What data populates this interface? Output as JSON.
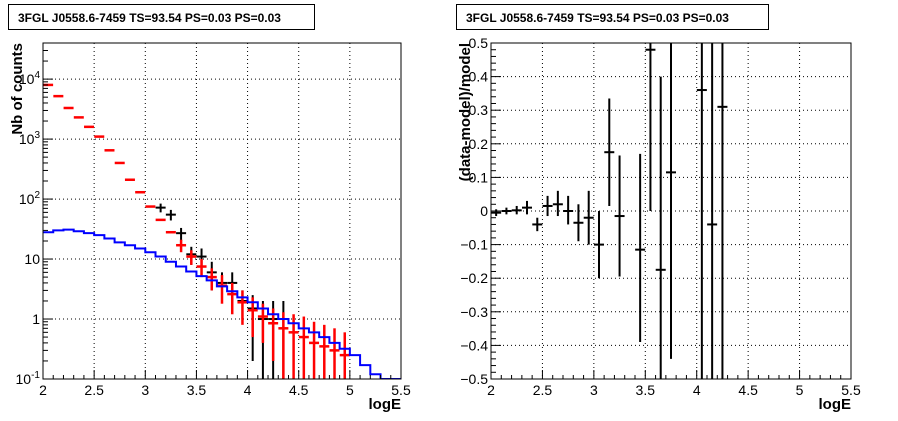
{
  "chart_data": [
    {
      "type": "line",
      "title": "3FGL J0558.6-7459 TS=93.54 PS=0.03 PS=0.03",
      "xlabel": "logE",
      "ylabel": "Nb of counts",
      "xlim": [
        2,
        5.5
      ],
      "ylim": [
        0.1,
        40000
      ],
      "ylog": true,
      "grid": true,
      "x_ticks": [
        "2",
        "2.5",
        "3",
        "3.5",
        "4",
        "4.5",
        "5",
        "5.5"
      ],
      "y_ticks": [
        "10^{-1}",
        "1",
        "10",
        "10^{2}",
        "10^{3}",
        "10^{4}"
      ],
      "series": [
        {
          "kind": "data_black",
          "color": "#000000",
          "x": [
            3.15,
            3.25,
            3.35,
            3.45,
            3.55,
            3.65,
            3.75,
            3.85,
            3.95,
            4.05,
            4.15,
            4.25,
            4.35
          ],
          "y": [
            72,
            55,
            27,
            12,
            11,
            6,
            4,
            4,
            2,
            1.5,
            1,
            1,
            1
          ],
          "ylow": [
            60,
            44,
            20,
            8,
            7,
            3,
            2,
            2,
            1,
            0.2,
            0.1,
            0.1,
            0.1
          ],
          "yhigh": [
            84,
            66,
            33,
            16,
            15,
            9,
            6,
            6,
            3,
            2.5,
            2,
            2,
            2
          ]
        },
        {
          "kind": "model_red",
          "color": "#ff0000",
          "x": [
            2.05,
            2.15,
            2.25,
            2.35,
            2.45,
            2.55,
            2.65,
            2.75,
            2.85,
            2.95,
            3.05,
            3.15,
            3.25,
            3.35,
            3.45,
            3.55,
            3.65,
            3.75,
            3.85,
            3.95,
            4.05,
            4.15,
            4.25,
            4.35,
            4.45,
            4.55,
            4.65,
            4.75,
            4.85,
            4.95
          ],
          "y": [
            8000,
            5200,
            3300,
            2300,
            1600,
            1100,
            650,
            400,
            210,
            130,
            75,
            45,
            28,
            17,
            11,
            7.5,
            5,
            3.6,
            2.6,
            1.9,
            1.4,
            1.1,
            0.85,
            0.7,
            0.6,
            0.5,
            0.4,
            0.35,
            0.3,
            0.25
          ],
          "ylow": [
            null,
            null,
            null,
            null,
            null,
            null,
            null,
            null,
            null,
            null,
            null,
            null,
            null,
            13,
            8,
            5,
            3,
            1.8,
            1.2,
            0.8,
            0.5,
            0.4,
            0.2,
            0.1,
            0.1,
            0.1,
            0.1,
            0.1,
            0.1,
            0.1
          ],
          "yhigh": [
            null,
            null,
            null,
            null,
            null,
            null,
            null,
            null,
            null,
            null,
            null,
            null,
            null,
            21,
            14,
            10,
            7,
            5.4,
            4.0,
            3.0,
            2.3,
            1.8,
            1.5,
            1.3,
            1.2,
            1.1,
            0.9,
            0.8,
            0.7,
            0.6
          ]
        },
        {
          "kind": "bkg_blue",
          "color": "#0000ff",
          "edges": [
            2.0,
            2.1,
            2.2,
            2.3,
            2.4,
            2.5,
            2.6,
            2.7,
            2.8,
            2.9,
            3.0,
            3.1,
            3.2,
            3.3,
            3.4,
            3.5,
            3.6,
            3.7,
            3.8,
            3.9,
            4.0,
            4.1,
            4.2,
            4.3,
            4.4,
            4.5,
            4.6,
            4.7,
            4.8,
            4.9,
            5.0,
            5.1,
            5.2,
            5.3,
            5.4,
            5.5
          ],
          "values": [
            28,
            30,
            31,
            29,
            27,
            25,
            22,
            19,
            17,
            15,
            13,
            11,
            9,
            7.5,
            6.2,
            5.2,
            4.4,
            3.5,
            2.9,
            2.3,
            1.9,
            1.5,
            1.2,
            1.0,
            0.85,
            0.7,
            0.6,
            0.5,
            0.4,
            0.32,
            0.25,
            0.17,
            0.12,
            0.1,
            0.1
          ]
        }
      ]
    },
    {
      "type": "scatter",
      "title": "3FGL J0558.6-7459 TS=93.54 PS=0.03 PS=0.03",
      "xlabel": "logE",
      "ylabel": "(data-model)/model",
      "xlim": [
        2,
        5.5
      ],
      "ylim": [
        -0.5,
        0.5
      ],
      "grid": true,
      "x_ticks": [
        "2",
        "2.5",
        "3",
        "3.5",
        "4",
        "4.5",
        "5",
        "5.5"
      ],
      "y_ticks": [
        "−0.5",
        "−0.4",
        "−0.3",
        "−0.2",
        "−0.1",
        "0",
        "0.1",
        "0.2",
        "0.3",
        "0.4",
        "0.5"
      ],
      "series": [
        {
          "color": "#000000",
          "x": [
            2.05,
            2.15,
            2.25,
            2.35,
            2.45,
            2.55,
            2.65,
            2.75,
            2.85,
            2.95,
            3.05,
            3.15,
            3.25,
            3.45,
            3.55,
            3.65,
            3.75,
            4.05,
            4.15,
            4.25
          ],
          "y": [
            -0.005,
            0.0,
            0.002,
            0.01,
            -0.04,
            0.015,
            0.02,
            0.0,
            -0.035,
            -0.02,
            -0.1,
            0.175,
            -0.015,
            -0.115,
            0.48,
            -0.175,
            0.115,
            0.36,
            -0.04,
            0.31
          ],
          "ylow": [
            -0.015,
            -0.01,
            -0.01,
            -0.01,
            -0.06,
            -0.015,
            -0.015,
            -0.04,
            -0.09,
            -0.1,
            -0.2,
            0.015,
            -0.195,
            -0.39,
            0.0,
            -0.5,
            -0.44,
            -0.5,
            -0.5,
            -0.5
          ],
          "yhigh": [
            0.005,
            0.01,
            0.015,
            0.03,
            -0.02,
            0.045,
            0.06,
            0.045,
            0.02,
            0.06,
            0.0,
            0.335,
            0.165,
            0.17,
            0.5,
            0.4,
            0.5,
            0.5,
            0.5,
            0.5
          ]
        }
      ]
    }
  ]
}
